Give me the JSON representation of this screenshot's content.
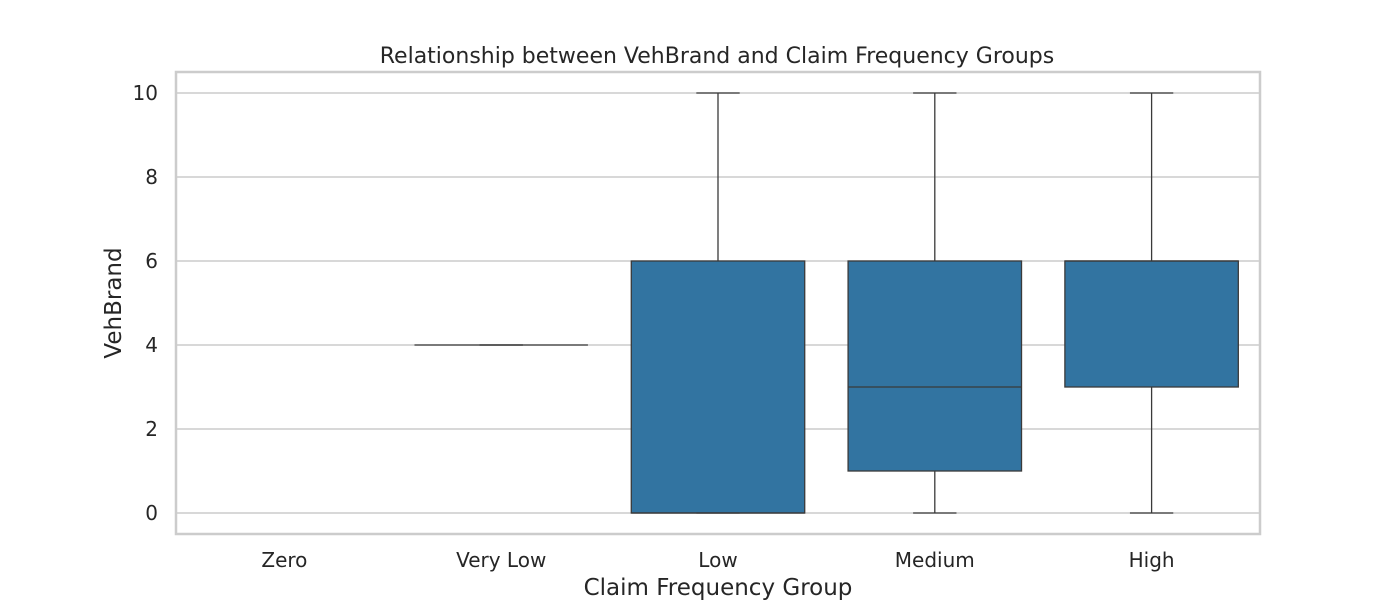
{
  "chart_data": {
    "type": "box",
    "title": "Relationship between VehBrand and Claim Frequency Groups",
    "xlabel": "Claim Frequency Group",
    "ylabel": "VehBrand",
    "categories": [
      "Zero",
      "Very Low",
      "Low",
      "Medium",
      "High"
    ],
    "boxes": [
      {
        "category": "Zero",
        "min": null,
        "q1": null,
        "median": null,
        "q3": null,
        "max": null
      },
      {
        "category": "Very Low",
        "min": 4,
        "q1": 4,
        "median": 4,
        "q3": 4,
        "max": 4
      },
      {
        "category": "Low",
        "min": 0,
        "q1": 0,
        "median": 0,
        "q3": 6,
        "max": 10
      },
      {
        "category": "Medium",
        "min": 0,
        "q1": 1,
        "median": 3,
        "q3": 6,
        "max": 10
      },
      {
        "category": "High",
        "min": 0,
        "q1": 3,
        "median": 6,
        "q3": 6,
        "max": 10
      }
    ],
    "ylim": [
      -0.5,
      10.5
    ],
    "yticks": [
      0,
      2,
      4,
      6,
      8,
      10
    ],
    "grid": "horizontal",
    "box_color": "#3274a1",
    "line_color": "#3a3a3a"
  }
}
